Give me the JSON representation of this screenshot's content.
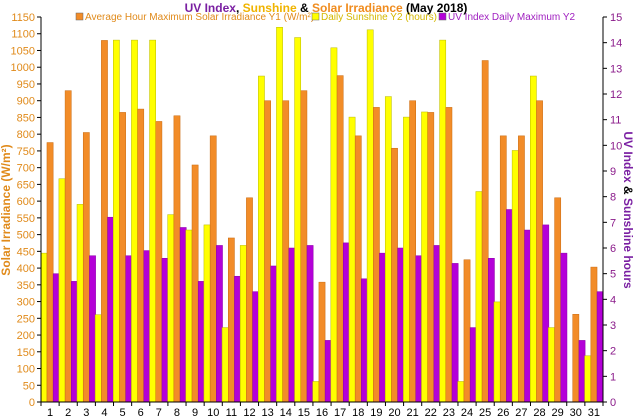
{
  "chart_data": {
    "type": "bar",
    "title": {
      "parts": [
        {
          "text": "UV Index",
          "color": "#7a1fa2"
        },
        {
          "text": ", ",
          "color": "#000000"
        },
        {
          "text": "Sunshine",
          "color": "#f0b400"
        },
        {
          "text": " & ",
          "color": "#000000"
        },
        {
          "text": "Solar Irradiance",
          "color": "#f08c1e"
        },
        {
          "text": " (May 2018)",
          "color": "#000000"
        }
      ]
    },
    "ylabel_left": "Solar Irradiance (W/m²)",
    "ylabel_right": {
      "parts": [
        {
          "text": "UV Index",
          "color": "#7a1fa2"
        },
        {
          "text": " & ",
          "color": "#000000"
        },
        {
          "text": "Sunshine hours",
          "color": "#7a1fa2"
        }
      ]
    },
    "categories": [
      "1",
      "2",
      "3",
      "4",
      "5",
      "6",
      "7",
      "8",
      "9",
      "10",
      "11",
      "12",
      "13",
      "14",
      "15",
      "16",
      "17",
      "18",
      "19",
      "20",
      "21",
      "22",
      "23",
      "24",
      "25",
      "26",
      "27",
      "28",
      "29",
      "30",
      "31"
    ],
    "y1_axis": {
      "min": 0,
      "max": 1150,
      "step": 50
    },
    "y2_axis": {
      "min": 0,
      "max": 15,
      "step": 1
    },
    "grid": false,
    "legend_position": "top",
    "series": [
      {
        "name": "Average Hour Maximum Solar Irradiance Y1 (W/m²)",
        "axis": "y1",
        "color": "#f28c28",
        "values": [
          775,
          930,
          805,
          1080,
          865,
          875,
          838,
          855,
          708,
          795,
          490,
          610,
          900,
          900,
          930,
          358,
          975,
          795,
          880,
          758,
          900,
          865,
          880,
          425,
          1020,
          795,
          795,
          900,
          610,
          262,
          403
        ]
      },
      {
        "name": "Daily Sunshine Y2 (hours)",
        "axis": "y2",
        "color": "#ffff00",
        "values": [
          5.8,
          8.7,
          7.7,
          3.4,
          14.1,
          14.1,
          14.1,
          7.3,
          6.7,
          6.9,
          2.9,
          6.1,
          12.7,
          14.6,
          14.2,
          0.8,
          13.8,
          11.1,
          14.5,
          11.9,
          11.1,
          11.3,
          14.1,
          0.8,
          8.2,
          3.9,
          9.8,
          12.7,
          2.9,
          0.0,
          1.8
        ]
      },
      {
        "name": "UV Index Daily Maximum Y2",
        "axis": "y2",
        "color": "#b400d8",
        "values": [
          5.0,
          4.7,
          5.7,
          7.2,
          5.7,
          5.9,
          5.6,
          6.8,
          4.7,
          6.1,
          4.9,
          4.3,
          5.3,
          6.0,
          6.1,
          2.4,
          6.2,
          4.8,
          5.8,
          6.0,
          5.7,
          6.1,
          5.4,
          2.9,
          5.6,
          7.5,
          6.7,
          6.9,
          5.8,
          2.4,
          4.3
        ]
      }
    ]
  }
}
